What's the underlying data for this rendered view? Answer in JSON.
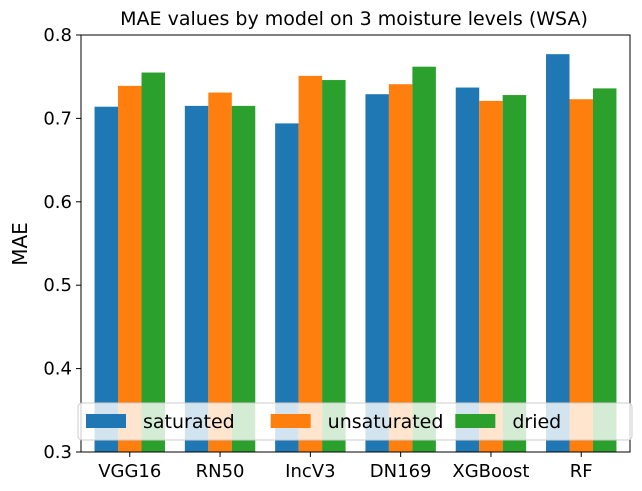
{
  "chart_data": {
    "type": "bar",
    "title": "MAE values by model on 3 moisture levels (WSA)",
    "xlabel": "",
    "ylabel": "MAE",
    "ylim": [
      0.3,
      0.8
    ],
    "yticks": [
      "0.3",
      "0.4",
      "0.5",
      "0.6",
      "0.7",
      "0.8"
    ],
    "categories": [
      "VGG16",
      "RN50",
      "IncV3",
      "DN169",
      "XGBoost",
      "RF"
    ],
    "series": [
      {
        "name": "saturated",
        "color": "#1f77b4",
        "values": [
          0.714,
          0.715,
          0.694,
          0.729,
          0.737,
          0.777
        ]
      },
      {
        "name": "unsaturated",
        "color": "#ff7f0e",
        "values": [
          0.739,
          0.731,
          0.751,
          0.741,
          0.721,
          0.723
        ]
      },
      {
        "name": "dried",
        "color": "#2ca02c",
        "values": [
          0.755,
          0.715,
          0.746,
          0.762,
          0.728,
          0.736
        ]
      }
    ],
    "grid": false,
    "legend": {
      "position": "bottom",
      "columns": 3
    }
  }
}
